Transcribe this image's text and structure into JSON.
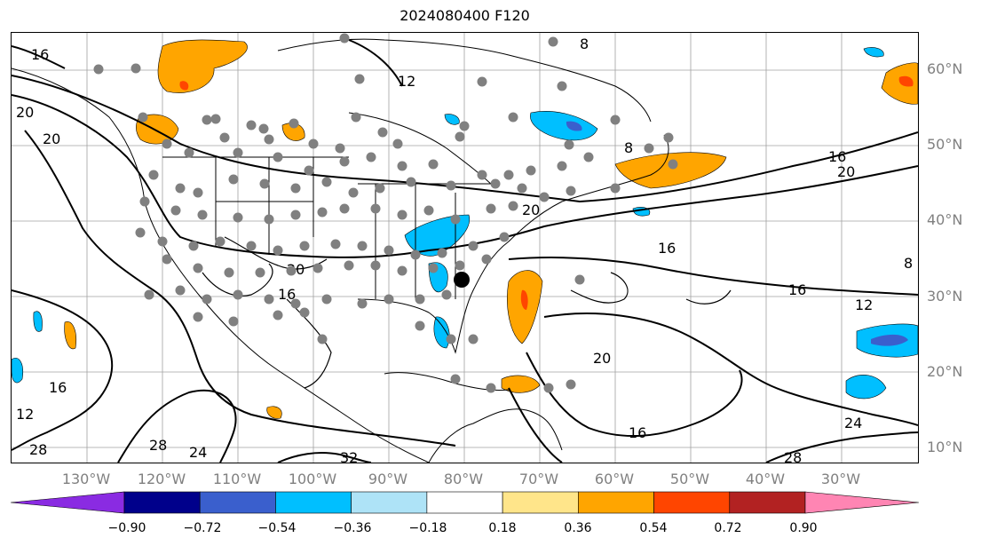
{
  "title": "2024080400 F120",
  "lat_labels": [
    "60°N",
    "50°N",
    "40°N",
    "30°N",
    "20°N",
    "10°N"
  ],
  "lon_labels": [
    "130°W",
    "120°W",
    "110°W",
    "100°W",
    "90°W",
    "80°W",
    "70°W",
    "60°W",
    "50°W",
    "40°W",
    "30°W"
  ],
  "contour_labels": [
    "16",
    "20",
    "20",
    "12",
    "8",
    "16",
    "20",
    "20",
    "16",
    "16",
    "12",
    "20",
    "8",
    "16",
    "12",
    "16",
    "20",
    "24",
    "28",
    "28",
    "24",
    "32",
    "16",
    "28",
    "8"
  ],
  "colorbar": {
    "colors": [
      "#8a2be2",
      "#00008b",
      "#3a5fcd",
      "#00bfff",
      "#aee3f7",
      "#ffffff",
      "#ffe58a",
      "#ffa500",
      "#ff4500",
      "#b22222",
      "#ff85b3"
    ],
    "ticks": [
      "−0.90",
      "−0.72",
      "−0.54",
      "−0.36",
      "−0.18",
      "0.18",
      "0.36",
      "0.54",
      "0.72",
      "0.90"
    ]
  },
  "colors": {
    "positive_fill": "#ffa500",
    "positive_core": "#ff4500",
    "negative_fill": "#00bfff",
    "negative_core": "#3a5fcd",
    "station": "#808080",
    "contour": "#000000",
    "grid": "#a0a0a0"
  }
}
